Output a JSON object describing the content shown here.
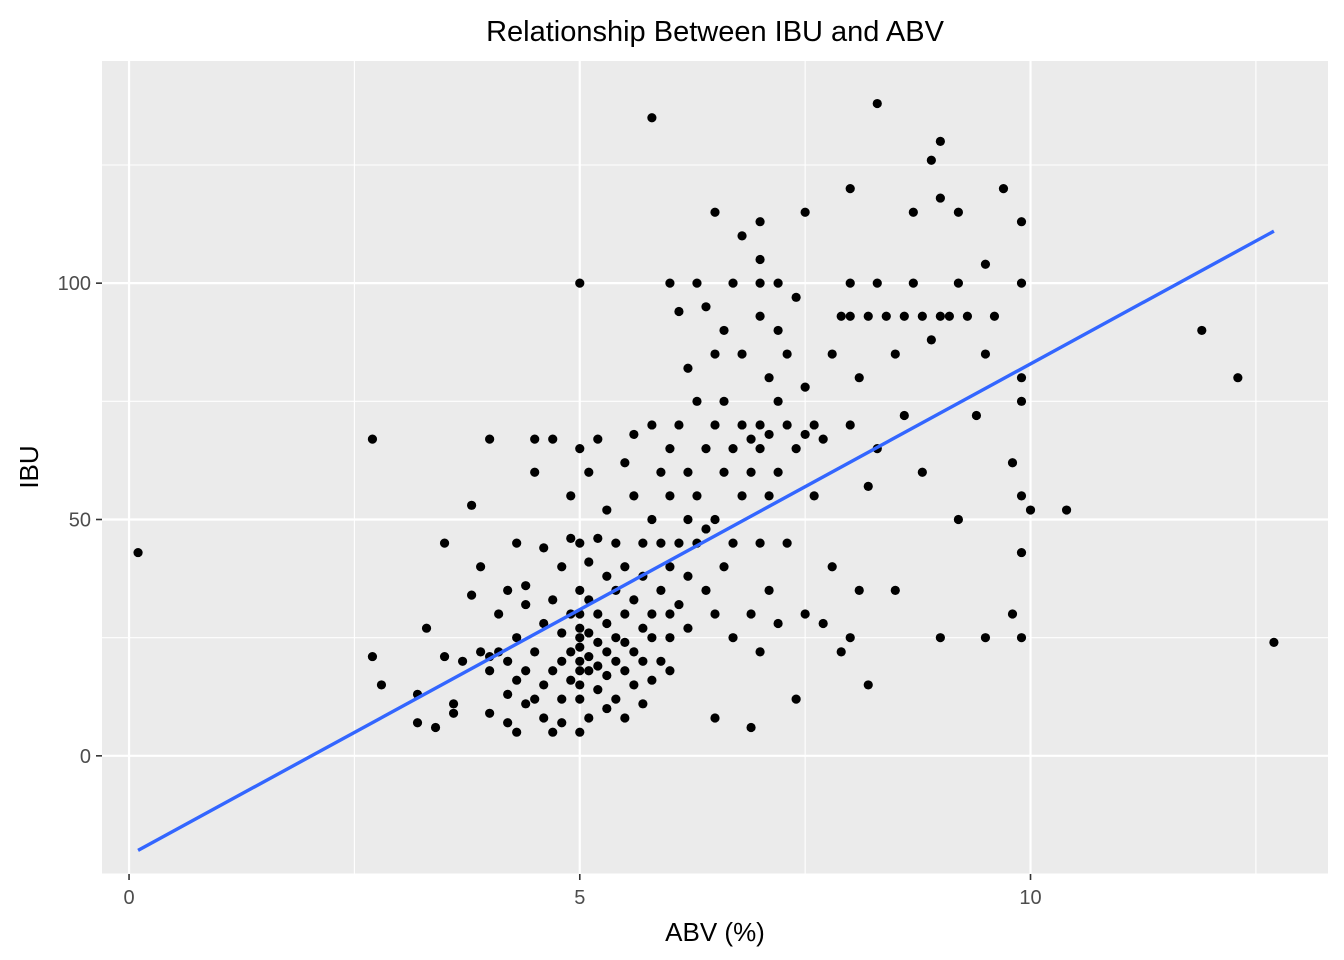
{
  "chart_data": {
    "type": "scatter",
    "title": "Relationship Between IBU and ABV",
    "xlabel": "ABV (%)",
    "ylabel": "IBU",
    "xlim": [
      -0.3,
      13.3
    ],
    "ylim": [
      -25,
      147
    ],
    "x_ticks": [
      0,
      5,
      10
    ],
    "x_tick_labels": [
      "0",
      "5",
      "10"
    ],
    "x_minor_ticks": [
      2.5,
      7.5,
      12.5
    ],
    "y_ticks": [
      0,
      50,
      100
    ],
    "y_tick_labels": [
      "0",
      "50",
      "100"
    ],
    "y_minor_ticks": [
      -25,
      25,
      75,
      125
    ],
    "grid": true,
    "legend": "none",
    "colors": {
      "panel_background": "#ebebeb",
      "grid": "#ffffff",
      "points": "#000000",
      "trend_line": "#3366ff",
      "tick_label": "#4d4d4d"
    },
    "series": [
      {
        "type": "scatter",
        "points": [
          [
            0.1,
            43
          ],
          [
            2.7,
            21
          ],
          [
            2.7,
            67
          ],
          [
            2.8,
            15
          ],
          [
            3.2,
            13
          ],
          [
            3.2,
            7
          ],
          [
            3.3,
            27
          ],
          [
            3.4,
            6
          ],
          [
            3.5,
            21
          ],
          [
            3.5,
            45
          ],
          [
            3.6,
            11
          ],
          [
            3.6,
            9
          ],
          [
            3.7,
            20
          ],
          [
            3.8,
            34
          ],
          [
            3.8,
            53
          ],
          [
            3.9,
            40
          ],
          [
            3.9,
            22
          ],
          [
            4.0,
            21
          ],
          [
            4.0,
            18
          ],
          [
            4.0,
            9
          ],
          [
            4.0,
            67
          ],
          [
            4.1,
            30
          ],
          [
            4.1,
            22
          ],
          [
            4.2,
            13
          ],
          [
            4.2,
            20
          ],
          [
            4.2,
            7
          ],
          [
            4.2,
            35
          ],
          [
            4.3,
            16
          ],
          [
            4.3,
            25
          ],
          [
            4.3,
            5
          ],
          [
            4.3,
            45
          ],
          [
            4.4,
            11
          ],
          [
            4.4,
            32
          ],
          [
            4.4,
            18
          ],
          [
            4.4,
            36
          ],
          [
            4.5,
            60
          ],
          [
            4.5,
            67
          ],
          [
            4.5,
            12
          ],
          [
            4.5,
            22
          ],
          [
            4.6,
            28
          ],
          [
            4.6,
            8
          ],
          [
            4.6,
            15
          ],
          [
            4.6,
            44
          ],
          [
            4.7,
            5
          ],
          [
            4.7,
            18
          ],
          [
            4.7,
            33
          ],
          [
            4.7,
            67
          ],
          [
            4.8,
            20
          ],
          [
            4.8,
            26
          ],
          [
            4.8,
            12
          ],
          [
            4.8,
            40
          ],
          [
            4.8,
            7
          ],
          [
            4.9,
            22
          ],
          [
            4.9,
            30
          ],
          [
            4.9,
            16
          ],
          [
            4.9,
            46
          ],
          [
            4.9,
            55
          ],
          [
            5.0,
            18
          ],
          [
            5.0,
            23
          ],
          [
            5.0,
            27
          ],
          [
            5.0,
            20
          ],
          [
            5.0,
            25
          ],
          [
            5.0,
            30
          ],
          [
            5.0,
            12
          ],
          [
            5.0,
            15
          ],
          [
            5.0,
            100
          ],
          [
            5.0,
            5
          ],
          [
            5.0,
            65
          ],
          [
            5.0,
            45
          ],
          [
            5.0,
            35
          ],
          [
            5.1,
            21
          ],
          [
            5.1,
            18
          ],
          [
            5.1,
            26
          ],
          [
            5.1,
            33
          ],
          [
            5.1,
            8
          ],
          [
            5.1,
            41
          ],
          [
            5.1,
            60
          ],
          [
            5.2,
            24
          ],
          [
            5.2,
            19
          ],
          [
            5.2,
            30
          ],
          [
            5.2,
            14
          ],
          [
            5.2,
            46
          ],
          [
            5.2,
            67
          ],
          [
            5.3,
            22
          ],
          [
            5.3,
            28
          ],
          [
            5.3,
            17
          ],
          [
            5.3,
            10
          ],
          [
            5.3,
            38
          ],
          [
            5.3,
            52
          ],
          [
            5.4,
            20
          ],
          [
            5.4,
            35
          ],
          [
            5.4,
            25
          ],
          [
            5.4,
            12
          ],
          [
            5.4,
            45
          ],
          [
            5.5,
            18
          ],
          [
            5.5,
            30
          ],
          [
            5.5,
            40
          ],
          [
            5.5,
            62
          ],
          [
            5.5,
            8
          ],
          [
            5.5,
            24
          ],
          [
            5.6,
            22
          ],
          [
            5.6,
            33
          ],
          [
            5.6,
            55
          ],
          [
            5.6,
            68
          ],
          [
            5.6,
            15
          ],
          [
            5.7,
            27
          ],
          [
            5.7,
            45
          ],
          [
            5.7,
            20
          ],
          [
            5.7,
            11
          ],
          [
            5.7,
            38
          ],
          [
            5.8,
            30
          ],
          [
            5.8,
            50
          ],
          [
            5.8,
            70
          ],
          [
            5.8,
            25
          ],
          [
            5.8,
            16
          ],
          [
            5.8,
            135
          ],
          [
            5.9,
            35
          ],
          [
            5.9,
            20
          ],
          [
            5.9,
            60
          ],
          [
            5.9,
            45
          ],
          [
            6.0,
            40
          ],
          [
            6.0,
            30
          ],
          [
            6.0,
            65
          ],
          [
            6.0,
            55
          ],
          [
            6.0,
            25
          ],
          [
            6.0,
            18
          ],
          [
            6.0,
            100
          ],
          [
            6.1,
            94
          ],
          [
            6.1,
            45
          ],
          [
            6.1,
            32
          ],
          [
            6.1,
            70
          ],
          [
            6.2,
            50
          ],
          [
            6.2,
            38
          ],
          [
            6.2,
            60
          ],
          [
            6.2,
            82
          ],
          [
            6.2,
            27
          ],
          [
            6.3,
            75
          ],
          [
            6.3,
            45
          ],
          [
            6.3,
            55
          ],
          [
            6.3,
            100
          ],
          [
            6.4,
            65
          ],
          [
            6.4,
            35
          ],
          [
            6.4,
            48
          ],
          [
            6.4,
            95
          ],
          [
            6.5,
            70
          ],
          [
            6.5,
            50
          ],
          [
            6.5,
            30
          ],
          [
            6.5,
            85
          ],
          [
            6.5,
            115
          ],
          [
            6.5,
            8
          ],
          [
            6.6,
            60
          ],
          [
            6.6,
            40
          ],
          [
            6.6,
            75
          ],
          [
            6.6,
            90
          ],
          [
            6.7,
            65
          ],
          [
            6.7,
            45
          ],
          [
            6.7,
            100
          ],
          [
            6.7,
            25
          ],
          [
            6.8,
            70
          ],
          [
            6.8,
            55
          ],
          [
            6.8,
            110
          ],
          [
            6.8,
            85
          ],
          [
            6.9,
            67
          ],
          [
            6.9,
            60
          ],
          [
            6.9,
            30
          ],
          [
            6.9,
            6
          ],
          [
            7.0,
            70
          ],
          [
            7.0,
            65
          ],
          [
            7.0,
            45
          ],
          [
            7.0,
            93
          ],
          [
            7.0,
            100
          ],
          [
            7.0,
            113
          ],
          [
            7.0,
            22
          ],
          [
            7.0,
            105
          ],
          [
            7.1,
            68
          ],
          [
            7.1,
            80
          ],
          [
            7.1,
            55
          ],
          [
            7.1,
            35
          ],
          [
            7.2,
            75
          ],
          [
            7.2,
            60
          ],
          [
            7.2,
            90
          ],
          [
            7.2,
            100
          ],
          [
            7.2,
            28
          ],
          [
            7.3,
            70
          ],
          [
            7.3,
            85
          ],
          [
            7.3,
            45
          ],
          [
            7.4,
            65
          ],
          [
            7.4,
            97
          ],
          [
            7.4,
            12
          ],
          [
            7.5,
            78
          ],
          [
            7.5,
            115
          ],
          [
            7.5,
            68
          ],
          [
            7.5,
            30
          ],
          [
            7.6,
            70
          ],
          [
            7.6,
            55
          ],
          [
            7.7,
            67
          ],
          [
            7.7,
            28
          ],
          [
            7.8,
            85
          ],
          [
            7.8,
            40
          ],
          [
            7.9,
            22
          ],
          [
            7.9,
            93
          ],
          [
            8.0,
            70
          ],
          [
            8.0,
            93
          ],
          [
            8.0,
            120
          ],
          [
            8.0,
            100
          ],
          [
            8.0,
            25
          ],
          [
            8.1,
            80
          ],
          [
            8.1,
            35
          ],
          [
            8.2,
            93
          ],
          [
            8.2,
            57
          ],
          [
            8.2,
            15
          ],
          [
            8.3,
            100
          ],
          [
            8.3,
            138
          ],
          [
            8.3,
            65
          ],
          [
            8.4,
            93
          ],
          [
            8.5,
            85
          ],
          [
            8.5,
            35
          ],
          [
            8.6,
            93
          ],
          [
            8.6,
            72
          ],
          [
            8.7,
            115
          ],
          [
            8.7,
            100
          ],
          [
            8.8,
            93
          ],
          [
            8.8,
            60
          ],
          [
            8.9,
            88
          ],
          [
            8.9,
            126
          ],
          [
            9.0,
            130
          ],
          [
            9.0,
            93
          ],
          [
            9.0,
            118
          ],
          [
            9.0,
            25
          ],
          [
            9.1,
            93
          ],
          [
            9.2,
            100
          ],
          [
            9.2,
            115
          ],
          [
            9.2,
            50
          ],
          [
            9.3,
            93
          ],
          [
            9.4,
            72
          ],
          [
            9.5,
            104
          ],
          [
            9.5,
            85
          ],
          [
            9.5,
            25
          ],
          [
            9.6,
            93
          ],
          [
            9.7,
            120
          ],
          [
            9.8,
            62
          ],
          [
            9.8,
            30
          ],
          [
            9.9,
            100
          ],
          [
            9.9,
            75
          ],
          [
            9.9,
            55
          ],
          [
            9.9,
            43
          ],
          [
            9.9,
            25
          ],
          [
            9.9,
            113
          ],
          [
            9.9,
            80
          ],
          [
            10.0,
            52
          ],
          [
            10.4,
            52
          ],
          [
            11.9,
            90
          ],
          [
            12.3,
            80
          ],
          [
            12.7,
            24
          ]
        ]
      }
    ],
    "trend_line": {
      "type": "line",
      "x": [
        0.1,
        12.7
      ],
      "y": [
        -20,
        111
      ]
    }
  }
}
